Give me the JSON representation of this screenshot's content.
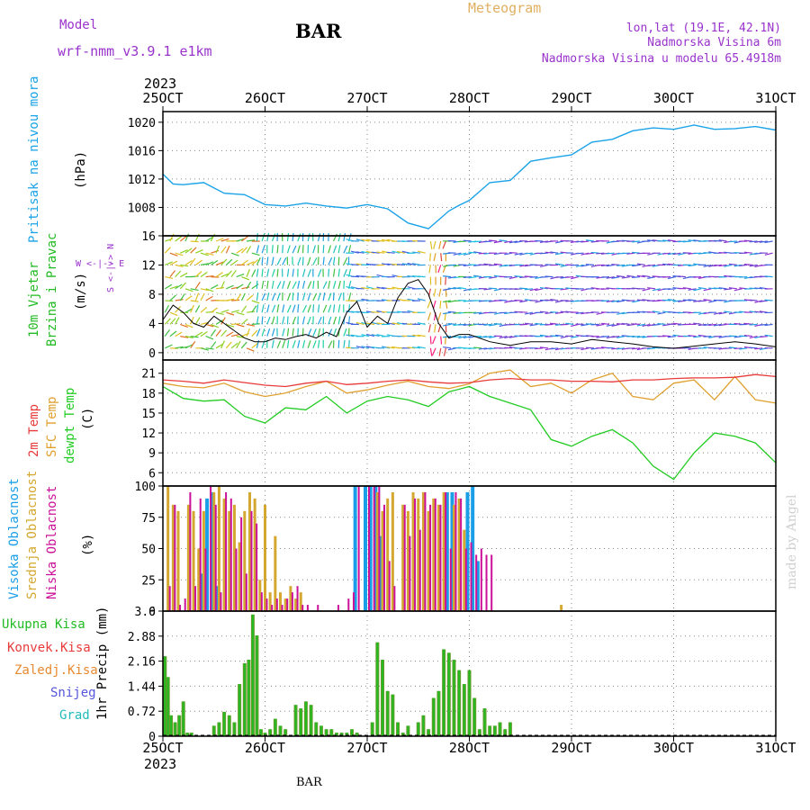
{
  "header": {
    "model_label": "Model",
    "model_name": "wrf-nmm_v3.9.1 e1km",
    "title": "BAR",
    "meteogram": "Meteogram",
    "lonlat": "lon,lat (19.1E, 42.1N)",
    "altitude": "Nadmorska Visina 6m",
    "model_altitude": "Nadmorska Visina u modelu 65.4918m",
    "year": "2023",
    "footer_station": "BAR",
    "credit": "made by Angel"
  },
  "colors": {
    "pressure": "#1aa3e8",
    "wind_label": "#22bb22",
    "temp2m": "#e83a3a",
    "sfc_temp": "#e0a030",
    "dewpt": "#22cc22",
    "purple_text": "#9933cc",
    "high_cloud": "#1a9ee8",
    "mid_cloud": "#d4a830",
    "low_cloud": "#cc1199",
    "precip_total": "#22bb22",
    "precip_conv": "#e83a3a",
    "precip_frozen": "#e88a30",
    "snow": "#5555dd",
    "hail": "#22bbbb"
  },
  "x_axis": {
    "ticks": [
      "25OCT",
      "26OCT",
      "27OCT",
      "28OCT",
      "29OCT",
      "30OCT",
      "31OCT"
    ],
    "range_days": [
      0,
      6
    ]
  },
  "panel_labels": {
    "pressure": {
      "name": "Pritisak na nivou mora",
      "unit": "(hPa)"
    },
    "wind": {
      "name1": "10m Vjetar",
      "name2": "Brzina i Pravac",
      "unit": "(m/s)",
      "compass": "W <-|-> E",
      "compass_v": "S <-|-> N"
    },
    "temp": {
      "t2m": "2m Temp",
      "sfc": "SFC Temp",
      "dew": "dewpt Temp",
      "unit": "(C)"
    },
    "cloud": {
      "high": "Visoka Oblacnost",
      "mid": "Srednja Oblacnost",
      "low": "Niska Oblacnost",
      "unit": "(%)"
    },
    "precip": {
      "ylabel": "1hr Precip (mm)",
      "legend": [
        "Ukupna Kisa",
        "Konvek.Kisa",
        "Zaledj.Kisa",
        "Snijeg",
        "Grad"
      ]
    }
  },
  "chart_data": [
    {
      "type": "line",
      "title": "Pritisak na nivou mora",
      "ylabel": "(hPa)",
      "ylim": [
        1004,
        1021.5
      ],
      "yticks": [
        1008,
        1012,
        1016,
        1020
      ],
      "grid": true,
      "x_days": [
        0,
        0.1,
        0.2,
        0.4,
        0.6,
        0.8,
        1.0,
        1.2,
        1.4,
        1.6,
        1.8,
        2.0,
        2.2,
        2.4,
        2.6,
        2.8,
        2.9,
        3.0,
        3.2,
        3.4,
        3.6,
        3.8,
        4.0,
        4.2,
        4.4,
        4.6,
        4.8,
        5.0,
        5.2,
        5.4,
        5.6,
        5.8,
        6.0
      ],
      "series": [
        {
          "values": [
            1012.7,
            1011.3,
            1011.2,
            1011.5,
            1010.0,
            1009.8,
            1008.4,
            1008.2,
            1008.6,
            1008.2,
            1007.9,
            1008.4,
            1007.8,
            1005.8,
            1005.0,
            1007.5,
            1008.3,
            1009.0,
            1011.5,
            1011.8,
            1014.5,
            1015.0,
            1015.4,
            1017.2,
            1017.6,
            1018.8,
            1019.2,
            1019.0,
            1019.6,
            1019.0,
            1019.1,
            1019.4,
            1018.9
          ]
        }
      ]
    },
    {
      "type": "line",
      "title": "10m Vjetar Brzina i Pravac",
      "ylabel": "(m/s)",
      "ylim": [
        -1,
        16
      ],
      "yticks": [
        0,
        4,
        8,
        12,
        16
      ],
      "grid": true,
      "x_days": [
        0,
        0.1,
        0.2,
        0.3,
        0.4,
        0.5,
        0.6,
        0.7,
        0.8,
        0.9,
        1.0,
        1.1,
        1.2,
        1.3,
        1.4,
        1.5,
        1.6,
        1.7,
        1.8,
        1.9,
        2.0,
        2.1,
        2.2,
        2.3,
        2.4,
        2.5,
        2.6,
        2.7,
        2.8,
        2.9,
        3.0,
        3.2,
        3.4,
        3.6,
        3.8,
        4.0,
        4.2,
        4.4,
        4.6,
        4.8,
        5.0,
        5.2,
        5.4,
        5.6,
        5.8,
        6.0
      ],
      "series": [
        {
          "name": "speed",
          "values": [
            4.5,
            6.5,
            5.5,
            4.0,
            3.5,
            5.0,
            4.0,
            3.0,
            2.0,
            1.5,
            1.5,
            2.0,
            1.8,
            2.2,
            2.5,
            2.0,
            2.8,
            2.2,
            5.5,
            7.0,
            3.5,
            5.0,
            4.0,
            7.5,
            9.5,
            10.0,
            8.0,
            4.0,
            2.0,
            2.5,
            2.5,
            1.5,
            1.0,
            1.5,
            1.5,
            1.2,
            1.8,
            1.5,
            1.2,
            0.8,
            0.6,
            0.9,
            1.2,
            1.5,
            1.2,
            0.8
          ]
        }
      ]
    },
    {
      "type": "line",
      "title": "Temp",
      "ylabel": "(C)",
      "ylim": [
        4,
        23
      ],
      "yticks": [
        6,
        9,
        12,
        15,
        18,
        21
      ],
      "grid": true,
      "x_days": [
        0,
        0.2,
        0.4,
        0.6,
        0.8,
        1.0,
        1.2,
        1.4,
        1.6,
        1.8,
        2.0,
        2.2,
        2.4,
        2.6,
        2.8,
        3.0,
        3.2,
        3.4,
        3.6,
        3.8,
        4.0,
        4.2,
        4.4,
        4.6,
        4.8,
        5.0,
        5.2,
        5.4,
        5.6,
        5.8,
        6.0
      ],
      "series": [
        {
          "name": "2m Temp",
          "values": [
            20.0,
            19.8,
            19.5,
            20.0,
            19.6,
            19.2,
            19.0,
            19.5,
            19.8,
            19.3,
            19.5,
            19.8,
            20.0,
            19.7,
            19.5,
            19.6,
            20.0,
            20.2,
            20.0,
            20.0,
            19.8,
            19.8,
            19.7,
            20.0,
            20.0,
            20.2,
            20.3,
            20.3,
            20.4,
            20.8,
            20.5
          ]
        },
        {
          "name": "SFC Temp",
          "values": [
            19.5,
            19.0,
            18.8,
            19.5,
            18.2,
            17.5,
            18.0,
            19.0,
            19.8,
            18.0,
            18.5,
            19.2,
            19.8,
            19.0,
            18.7,
            19.4,
            21.0,
            21.5,
            19.0,
            19.5,
            18.0,
            20.0,
            21.0,
            17.5,
            17.0,
            19.5,
            20.0,
            17.0,
            20.5,
            17.0,
            16.5
          ]
        },
        {
          "name": "dewpt Temp",
          "values": [
            19.0,
            17.2,
            16.8,
            17.0,
            14.5,
            13.5,
            15.8,
            15.5,
            17.5,
            15.0,
            16.8,
            17.5,
            17.0,
            16.0,
            18.2,
            19.0,
            17.5,
            16.5,
            15.5,
            11.0,
            10.0,
            11.5,
            12.5,
            10.5,
            7.0,
            5.0,
            9.0,
            12.0,
            11.5,
            10.5,
            7.5
          ]
        }
      ]
    },
    {
      "type": "bar",
      "title": "Oblacnost",
      "ylabel": "(%)",
      "ylim": [
        0,
        100
      ],
      "yticks": [
        0,
        25,
        50,
        75,
        100
      ],
      "grid": true,
      "x_days": [
        0.05,
        0.1,
        0.15,
        0.2,
        0.25,
        0.3,
        0.35,
        0.4,
        0.45,
        0.5,
        0.55,
        0.6,
        0.65,
        0.7,
        0.75,
        0.8,
        0.85,
        0.9,
        0.95,
        1.0,
        1.05,
        1.1,
        1.15,
        1.2,
        1.25,
        1.3,
        1.35,
        1.4,
        1.5,
        1.6,
        1.7,
        1.8,
        1.85,
        1.9,
        2.0,
        2.05,
        2.1,
        2.15,
        2.2,
        2.25,
        2.35,
        2.4,
        2.45,
        2.5,
        2.55,
        2.6,
        2.65,
        2.7,
        2.75,
        2.8,
        2.85,
        2.9,
        2.95,
        3.0,
        3.05,
        3.1,
        3.15,
        3.2,
        3.9
      ],
      "series": [
        {
          "name": "Visoka Oblacnost",
          "values": [
            0,
            0,
            0,
            0,
            0,
            0,
            0,
            30,
            90,
            95,
            20,
            0,
            0,
            0,
            0,
            0,
            0,
            0,
            0,
            0,
            0,
            0,
            0,
            0,
            0,
            0,
            0,
            0,
            0,
            0,
            0,
            0,
            0,
            100,
            100,
            100,
            100,
            60,
            0,
            0,
            0,
            0,
            0,
            0,
            0,
            0,
            0,
            0,
            0,
            95,
            95,
            0,
            0,
            95,
            100,
            40,
            0,
            0,
            0
          ]
        },
        {
          "name": "Srednja Oblacnost",
          "values": [
            100,
            85,
            80,
            0,
            85,
            80,
            50,
            80,
            0,
            95,
            100,
            90,
            80,
            85,
            55,
            80,
            95,
            90,
            25,
            85,
            15,
            60,
            15,
            10,
            20,
            10,
            15,
            0,
            0,
            0,
            0,
            0,
            0,
            0,
            0,
            0,
            95,
            80,
            90,
            95,
            85,
            80,
            95,
            90,
            95,
            80,
            90,
            85,
            95,
            0,
            85,
            90,
            65,
            0,
            0,
            0,
            0,
            0,
            5
          ]
        },
        {
          "name": "Niska Oblacnost",
          "values": [
            20,
            85,
            5,
            10,
            95,
            20,
            90,
            50,
            100,
            85,
            15,
            95,
            90,
            50,
            75,
            30,
            80,
            70,
            15,
            10,
            5,
            10,
            5,
            10,
            15,
            20,
            5,
            5,
            5,
            0,
            5,
            10,
            15,
            100,
            100,
            100,
            100,
            85,
            40,
            20,
            85,
            60,
            90,
            65,
            95,
            85,
            90,
            85,
            95,
            50,
            95,
            90,
            50,
            55,
            45,
            50,
            45,
            45,
            0
          ]
        }
      ]
    },
    {
      "type": "bar",
      "title": "1hr Precip",
      "ylabel": "1hr Precip (mm)",
      "ylim": [
        0,
        3.6
      ],
      "yticks": [
        0,
        0.72,
        1.44,
        2.16,
        2.88,
        3.6
      ],
      "grid": true,
      "x_days": [
        0.02,
        0.05,
        0.08,
        0.12,
        0.16,
        0.2,
        0.24,
        0.28,
        0.5,
        0.55,
        0.6,
        0.65,
        0.7,
        0.75,
        0.8,
        0.84,
        0.88,
        0.92,
        0.96,
        1.0,
        1.05,
        1.1,
        1.15,
        1.2,
        1.3,
        1.35,
        1.4,
        1.45,
        1.5,
        1.55,
        1.6,
        1.65,
        1.7,
        1.75,
        1.8,
        1.85,
        1.9,
        2.05,
        2.1,
        2.15,
        2.2,
        2.25,
        2.3,
        2.35,
        2.4,
        2.5,
        2.55,
        2.6,
        2.65,
        2.7,
        2.75,
        2.8,
        2.85,
        2.9,
        2.95,
        3.0,
        3.05,
        3.1,
        3.15,
        3.2,
        3.25,
        3.3,
        3.35,
        3.4
      ],
      "series": [
        {
          "name": "Ukupna Kisa",
          "values": [
            2.3,
            1.7,
            0.6,
            0.4,
            0.6,
            1.0,
            0.1,
            0.1,
            0.3,
            0.4,
            0.7,
            0.6,
            0.4,
            1.5,
            2.1,
            2.2,
            3.5,
            2.9,
            0.2,
            0.1,
            0.2,
            0.5,
            0.3,
            0.2,
            0.9,
            0.8,
            1.0,
            0.9,
            0.4,
            0.3,
            0.2,
            0.2,
            0.1,
            0.1,
            0.1,
            0.2,
            0.1,
            0.4,
            2.7,
            2.2,
            1.3,
            1.2,
            0.4,
            0.1,
            0.3,
            0.4,
            0.6,
            0.2,
            1.1,
            1.3,
            2.5,
            2.4,
            2.2,
            1.9,
            1.5,
            1.9,
            1.1,
            0.2,
            0.8,
            0.3,
            0.3,
            0.4,
            0.2,
            0.4
          ]
        },
        {
          "name": "Konvek.Kisa",
          "values": [
            0,
            0,
            0,
            0,
            0,
            0,
            0,
            0,
            0,
            0,
            0,
            0,
            0,
            0,
            0,
            0,
            0,
            0,
            0,
            0,
            0,
            0,
            0,
            0,
            0,
            0,
            0,
            0,
            0,
            0,
            0,
            0,
            0,
            0,
            0,
            0,
            0,
            0,
            0,
            0,
            0,
            0,
            0,
            0,
            0,
            0,
            0,
            0,
            0,
            0,
            0,
            0,
            0,
            0,
            0,
            0,
            0,
            0,
            0,
            0,
            0,
            0,
            0,
            0
          ]
        }
      ]
    }
  ]
}
